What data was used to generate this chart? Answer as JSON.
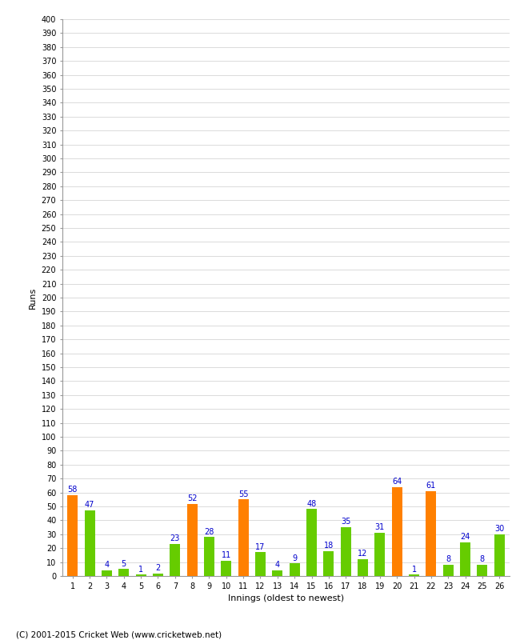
{
  "innings": [
    1,
    2,
    3,
    4,
    5,
    6,
    7,
    8,
    9,
    10,
    11,
    12,
    13,
    14,
    15,
    16,
    17,
    18,
    19,
    20,
    21,
    22,
    23,
    24,
    25,
    26
  ],
  "values": [
    58,
    47,
    4,
    5,
    1,
    2,
    23,
    52,
    28,
    11,
    55,
    17,
    4,
    9,
    48,
    18,
    35,
    12,
    31,
    64,
    1,
    61,
    8,
    24,
    8,
    30
  ],
  "orange_innings": [
    1,
    8,
    11,
    20,
    22
  ],
  "orange_color": "#FF8000",
  "green_color": "#66CC00",
  "label_color": "#0000CC",
  "xlabel": "Innings (oldest to newest)",
  "ylabel": "Runs",
  "ylim": [
    0,
    400
  ],
  "background_color": "#FFFFFF",
  "grid_color": "#CCCCCC",
  "footer": "(C) 2001-2015 Cricket Web (www.cricketweb.net)"
}
